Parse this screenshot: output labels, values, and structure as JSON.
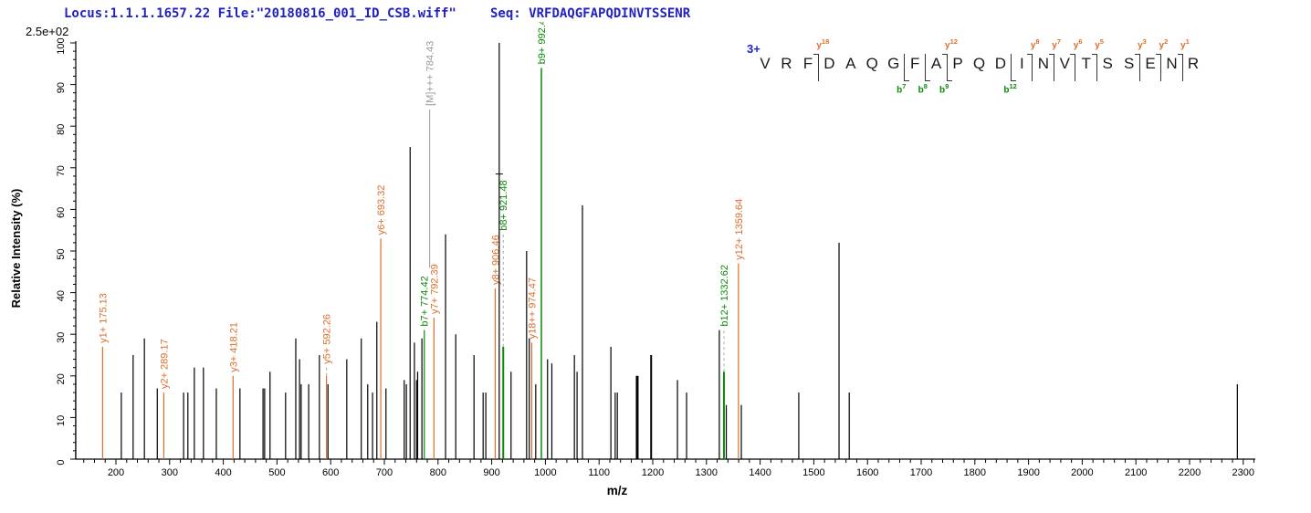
{
  "header": {
    "locus_file": "Locus:1.1.1.1657.22 File:\"20180816_001_ID_CSB.wiff\"",
    "seq_label": "Seq:",
    "seq_value": "VRFDAQGFAPQDINVTSSENR"
  },
  "axes": {
    "scale_label": "2.5e+02",
    "y_title": "Relative  Intensity (%)",
    "x_title": "m/z",
    "y_ticks": [
      0,
      10,
      20,
      30,
      40,
      50,
      60,
      70,
      80,
      90,
      100
    ],
    "x_ticks": [
      200,
      300,
      400,
      500,
      600,
      700,
      800,
      900,
      1000,
      1100,
      1200,
      1300,
      1400,
      1500,
      1600,
      1700,
      1800,
      1900,
      2000,
      2100,
      2200,
      2300
    ],
    "x_minor_step": 20,
    "y_minor_step": 2,
    "x_range": [
      125,
      2320
    ],
    "y_range": [
      0,
      100
    ]
  },
  "colors": {
    "y_ion": "#dd6e2a",
    "b_ion": "#0b8a0b",
    "precursor": "#999999",
    "peak": "#000000",
    "axis": "#000000",
    "header_text": "#2121c4",
    "charge_text": "#2121c4",
    "dash": "#aaaaaa"
  },
  "annotation": {
    "charge": "3+",
    "residues": [
      "V",
      "R",
      "F",
      "D",
      "A",
      "Q",
      "G",
      "F",
      "A",
      "P",
      "Q",
      "D",
      "I",
      "N",
      "V",
      "T",
      "S",
      "S",
      "E",
      "N",
      "R"
    ],
    "markers": [
      {
        "gap": 3,
        "y": "18"
      },
      {
        "gap": 7,
        "b": "7"
      },
      {
        "gap": 8,
        "b": "8"
      },
      {
        "gap": 9,
        "y": "12",
        "b": "9"
      },
      {
        "gap": 12,
        "b": "12"
      },
      {
        "gap": 13,
        "y": "8"
      },
      {
        "gap": 14,
        "y": "7"
      },
      {
        "gap": 15,
        "y": "6"
      },
      {
        "gap": 16,
        "y": "5"
      },
      {
        "gap": 18,
        "y": "3"
      },
      {
        "gap": 19,
        "y": "2"
      },
      {
        "gap": 20,
        "y": "1"
      }
    ]
  },
  "chart_data": {
    "type": "bar",
    "title": "MS/MS fragment ion spectrum",
    "xlabel": "m/z",
    "ylabel": "Relative  Intensity (%)",
    "xlim": [
      125,
      2320
    ],
    "ylim": [
      0,
      100
    ],
    "intensity_scale": "2.5e+02",
    "peaks": [
      {
        "mz": 125,
        "pct": 20
      },
      {
        "mz": 175.13,
        "pct": 27,
        "ion": "y",
        "label": "y1+ 175.13"
      },
      {
        "mz": 210,
        "pct": 16
      },
      {
        "mz": 232,
        "pct": 25
      },
      {
        "mz": 253,
        "pct": 29
      },
      {
        "mz": 277,
        "pct": 17
      },
      {
        "mz": 289.17,
        "pct": 16,
        "ion": "y",
        "label": "y2+ 289.17"
      },
      {
        "mz": 326,
        "pct": 16
      },
      {
        "mz": 334,
        "pct": 16
      },
      {
        "mz": 346,
        "pct": 22
      },
      {
        "mz": 363,
        "pct": 22
      },
      {
        "mz": 387,
        "pct": 17
      },
      {
        "mz": 418.21,
        "pct": 20,
        "ion": "y",
        "label": "y3+ 418.21"
      },
      {
        "mz": 431,
        "pct": 17
      },
      {
        "mz": 474,
        "pct": 17
      },
      {
        "mz": 477,
        "pct": 17
      },
      {
        "mz": 487,
        "pct": 21
      },
      {
        "mz": 516,
        "pct": 16
      },
      {
        "mz": 535,
        "pct": 29
      },
      {
        "mz": 542,
        "pct": 24
      },
      {
        "mz": 545,
        "pct": 18
      },
      {
        "mz": 559,
        "pct": 18
      },
      {
        "mz": 579,
        "pct": 25
      },
      {
        "mz": 592.26,
        "pct": 20,
        "ion": "y",
        "label": "y5+ 592.26",
        "dash_to_pct": 22
      },
      {
        "mz": 595,
        "pct": 18
      },
      {
        "mz": 630,
        "pct": 24
      },
      {
        "mz": 657,
        "pct": 29
      },
      {
        "mz": 669,
        "pct": 18
      },
      {
        "mz": 678,
        "pct": 16
      },
      {
        "mz": 686,
        "pct": 33
      },
      {
        "mz": 693.32,
        "pct": 53,
        "ion": "y",
        "label": "y6+ 693.32"
      },
      {
        "mz": 703,
        "pct": 17
      },
      {
        "mz": 737,
        "pct": 19
      },
      {
        "mz": 741,
        "pct": 18
      },
      {
        "mz": 748,
        "pct": 75
      },
      {
        "mz": 756,
        "pct": 28
      },
      {
        "mz": 760,
        "pct": 19
      },
      {
        "mz": 762,
        "pct": 21
      },
      {
        "mz": 770,
        "pct": 29
      },
      {
        "mz": 774.42,
        "pct": 31,
        "ion": "b",
        "label": "b7+ 774.42"
      },
      {
        "mz": 784.43,
        "pct": 0,
        "ion": "M",
        "label": "[M]+++ 784.43",
        "leader_top_pct": 84,
        "leader_bottom_pct": 46
      },
      {
        "mz": 792.39,
        "pct": 34,
        "ion": "y",
        "label": "y7+ 792.39"
      },
      {
        "mz": 814,
        "pct": 54
      },
      {
        "mz": 833,
        "pct": 30
      },
      {
        "mz": 867,
        "pct": 25
      },
      {
        "mz": 884,
        "pct": 16
      },
      {
        "mz": 889,
        "pct": 16
      },
      {
        "mz": 906.46,
        "pct": 41,
        "ion": "y",
        "label": "y8+ 906.46"
      },
      {
        "mz": 914,
        "pct": 100,
        "tick_pct": 68.5
      },
      {
        "mz": 921.48,
        "pct": 27,
        "ion": "b",
        "label": "b8+ 921.48",
        "dash_to_pct": 54,
        "w": 2
      },
      {
        "mz": 936,
        "pct": 21
      },
      {
        "mz": 965,
        "pct": 50
      },
      {
        "mz": 970,
        "pct": 29
      },
      {
        "mz": 974.47,
        "pct": 28,
        "ion": "y",
        "label": "y18++ 974.47"
      },
      {
        "mz": 982,
        "pct": 18
      },
      {
        "mz": 992.49,
        "pct": 94,
        "ion": "b",
        "label": "b9+ 992.49",
        "w": 1.5
      },
      {
        "mz": 1004,
        "pct": 24
      },
      {
        "mz": 1012,
        "pct": 23
      },
      {
        "mz": 1054,
        "pct": 25
      },
      {
        "mz": 1059,
        "pct": 21
      },
      {
        "mz": 1069,
        "pct": 61
      },
      {
        "mz": 1122,
        "pct": 27
      },
      {
        "mz": 1130,
        "pct": 16
      },
      {
        "mz": 1134,
        "pct": 16
      },
      {
        "mz": 1171,
        "pct": 20,
        "w": 3
      },
      {
        "mz": 1197,
        "pct": 25,
        "w": 2
      },
      {
        "mz": 1246,
        "pct": 19
      },
      {
        "mz": 1263,
        "pct": 16
      },
      {
        "mz": 1324,
        "pct": 31
      },
      {
        "mz": 1332.62,
        "pct": 21,
        "ion": "b",
        "label": "b12+ 1332.62",
        "dash_to_pct": 31,
        "w": 2
      },
      {
        "mz": 1337,
        "pct": 13
      },
      {
        "mz": 1359.64,
        "pct": 47,
        "ion": "y",
        "label": "y12+ 1359.64"
      },
      {
        "mz": 1365,
        "pct": 13
      },
      {
        "mz": 1472,
        "pct": 16
      },
      {
        "mz": 1547,
        "pct": 52
      },
      {
        "mz": 1566,
        "pct": 16
      },
      {
        "mz": 2289,
        "pct": 18
      }
    ]
  }
}
